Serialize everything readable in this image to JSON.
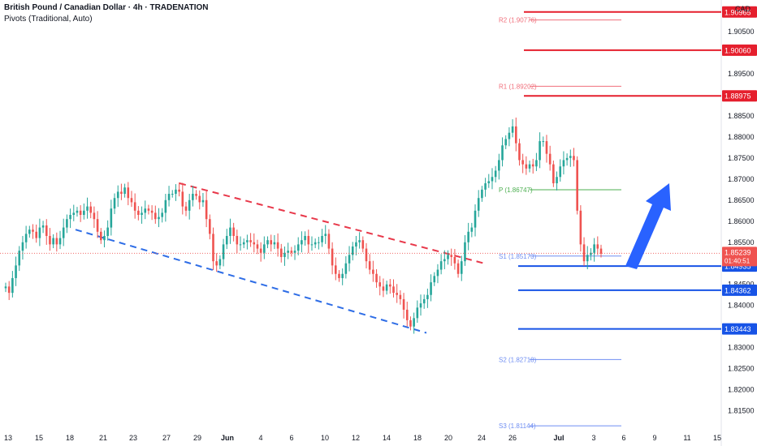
{
  "header": {
    "title": "British Pound / Canadian Dollar · 4h · TRADENATION",
    "indicator": "Pivots (Traditional, Auto)",
    "currency": "CAD"
  },
  "colors": {
    "up": "#26a69a",
    "down": "#ef5350",
    "resistance": "#e51f2d",
    "support": "#1753e6",
    "trend_red": "#e8384a",
    "trend_blue": "#2e6de6",
    "arrow": "#2962ff",
    "pivot_red": "#f06f7b",
    "pivot_green": "#4caf50",
    "pivot_blue": "#6f8ef2",
    "axis_text": "#131722",
    "grid_text": "#787b86"
  },
  "chart_data": {
    "type": "candlestick",
    "y_range": [
      1.8105,
      1.9125
    ],
    "y_ticks": [
      "1.90500",
      "1.90000",
      "1.89500",
      "1.88500",
      "1.88000",
      "1.87500",
      "1.87000",
      "1.86500",
      "1.86000",
      "1.85500",
      "1.84500",
      "1.84000",
      "1.83000",
      "1.82500",
      "1.82000",
      "1.81500"
    ],
    "x_ticks": [
      "13",
      "15",
      "18",
      "21",
      "23",
      "27",
      "29",
      "Jun",
      "4",
      "6",
      "10",
      "12",
      "14",
      "18",
      "20",
      "24",
      "26",
      "Jul",
      "3",
      "6",
      "9",
      "11",
      "15"
    ],
    "price_now": "1.85239",
    "countdown": "01:40:51",
    "closes": [
      1.8445,
      1.843,
      1.8465,
      1.8495,
      1.853,
      1.855,
      1.857,
      1.858,
      1.8575,
      1.856,
      1.8585,
      1.859,
      1.8565,
      1.8545,
      1.856,
      1.8545,
      1.856,
      1.8585,
      1.8605,
      1.8615,
      1.862,
      1.8625,
      1.8615,
      1.8625,
      1.8635,
      1.862,
      1.8605,
      1.8575,
      1.8555,
      1.8565,
      1.8585,
      1.863,
      1.8655,
      1.867,
      1.8665,
      1.868,
      1.8655,
      1.8645,
      1.8625,
      1.8615,
      1.862,
      1.863,
      1.8625,
      1.862,
      1.8605,
      1.861,
      1.862,
      1.865,
      1.8665,
      1.8665,
      1.8675,
      1.867,
      1.8635,
      1.8625,
      1.865,
      1.8665,
      1.866,
      1.8645,
      1.865,
      1.8605,
      1.857,
      1.8505,
      1.8495,
      1.851,
      1.8545,
      1.8565,
      1.8585,
      1.8565,
      1.8545,
      1.8545,
      1.855,
      1.8555,
      1.855,
      1.8545,
      1.8535,
      1.8525,
      1.8545,
      1.8555,
      1.8545,
      1.855,
      1.8535,
      1.8515,
      1.8525,
      1.853,
      1.8525,
      1.853,
      1.8545,
      1.8555,
      1.8565,
      1.8545,
      1.8545,
      1.855,
      1.855,
      1.8565,
      1.857,
      1.8535,
      1.8495,
      1.8475,
      1.8465,
      1.8475,
      1.85,
      1.852,
      1.854,
      1.855,
      1.8555,
      1.8535,
      1.8505,
      1.8485,
      1.8475,
      1.8455,
      1.8445,
      1.8435,
      1.845,
      1.8445,
      1.843,
      1.8425,
      1.8415,
      1.839,
      1.8365,
      1.835,
      1.837,
      1.8395,
      1.8405,
      1.8415,
      1.8425,
      1.8455,
      1.847,
      1.8485,
      1.8505,
      1.851,
      1.852,
      1.8515,
      1.85,
      1.8475,
      1.8505,
      1.855,
      1.8575,
      1.8585,
      1.8625,
      1.8655,
      1.8675,
      1.869,
      1.8695,
      1.8705,
      1.872,
      1.8745,
      1.878,
      1.8795,
      1.881,
      1.8825,
      1.8785,
      1.8745,
      1.8735,
      1.8725,
      1.8735,
      1.873,
      1.8745,
      1.879,
      1.879,
      1.876,
      1.8735,
      1.869,
      1.8705,
      1.873,
      1.8745,
      1.875,
      1.8755,
      1.8745,
      1.8625,
      1.8545,
      1.8505,
      1.852,
      1.8525,
      1.8545,
      1.8535,
      1.8523
    ]
  },
  "levels": {
    "resistance": [
      {
        "price": 1.90965,
        "label": "1.90965"
      },
      {
        "price": 1.9006,
        "label": "1.90060"
      },
      {
        "price": 1.88975,
        "label": "1.88975"
      }
    ],
    "support": [
      {
        "price": 1.84935,
        "label": "1.84935"
      },
      {
        "price": 1.84362,
        "label": "1.84362"
      },
      {
        "price": 1.83443,
        "label": "1.83443"
      }
    ]
  },
  "pivots": [
    {
      "price": 1.90776,
      "label": "R2 (1.90776)",
      "kind": "red"
    },
    {
      "price": 1.89202,
      "label": "R1 (1.89202)",
      "kind": "red"
    },
    {
      "price": 1.86747,
      "label": "P (1.86747)",
      "kind": "green"
    },
    {
      "price": 1.85173,
      "label": "S1 (1.85173)",
      "kind": "blue"
    },
    {
      "price": 1.82718,
      "label": "S2 (1.82718)",
      "kind": "blue"
    },
    {
      "price": 1.81144,
      "label": "S3 (1.81144)",
      "kind": "blue"
    }
  ],
  "trendlines": {
    "upper": {
      "from": [
        "28",
        1.869
      ],
      "to": [
        "21",
        1.85
      ]
    },
    "lower": {
      "from": [
        "18",
        1.858
      ],
      "to": [
        "18",
        1.8335
      ]
    }
  }
}
